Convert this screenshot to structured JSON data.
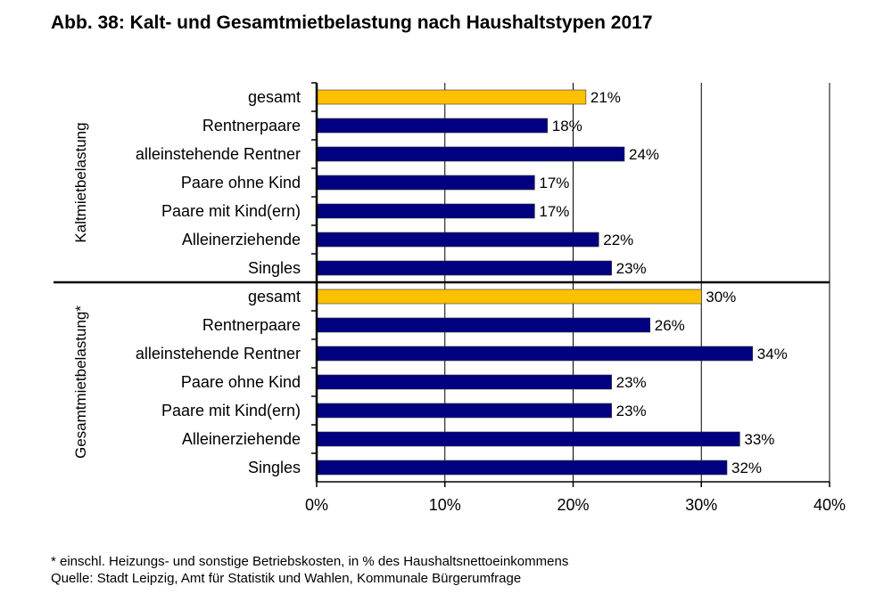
{
  "chart_data": {
    "type": "bar",
    "orientation": "horizontal",
    "title": "Abb. 38: Kalt- und Gesamtmietbelastung nach Haushaltstypen 2017",
    "xlim": [
      0,
      40
    ],
    "xticks": [
      "0%",
      "10%",
      "20%",
      "30%",
      "40%"
    ],
    "grid": true,
    "groups": [
      {
        "label": "Kaltmietbelastung",
        "categories": [
          "gesamt",
          "Rentnerpaare",
          "alleinstehende Rentner",
          "Paare ohne Kind",
          "Paare mit Kind(ern)",
          "Alleinerziehende",
          "Singles"
        ],
        "values": [
          21,
          18,
          24,
          17,
          17,
          22,
          23
        ],
        "labels": [
          "21%",
          "18%",
          "24%",
          "17%",
          "17%",
          "22%",
          "23%"
        ]
      },
      {
        "label": "Gesamtmietbelastung*",
        "categories": [
          "gesamt",
          "Rentnerpaare",
          "alleinstehende Rentner",
          "Paare ohne Kind",
          "Paare mit Kind(ern)",
          "Alleinerziehende",
          "Singles"
        ],
        "values": [
          30,
          26,
          34,
          23,
          23,
          33,
          32
        ],
        "labels": [
          "30%",
          "26%",
          "34%",
          "23%",
          "23%",
          "33%",
          "32%"
        ]
      }
    ],
    "colors": {
      "highlight": "#FFC000",
      "default": "#000080"
    }
  },
  "footnote": "* einschl. Heizungs- und sonstige Betriebskosten, in % des Haushaltsnettoeinkommens",
  "source": "Quelle: Stadt Leipzig, Amt für Statistik und Wahlen, Kommunale Bürgerumfrage"
}
